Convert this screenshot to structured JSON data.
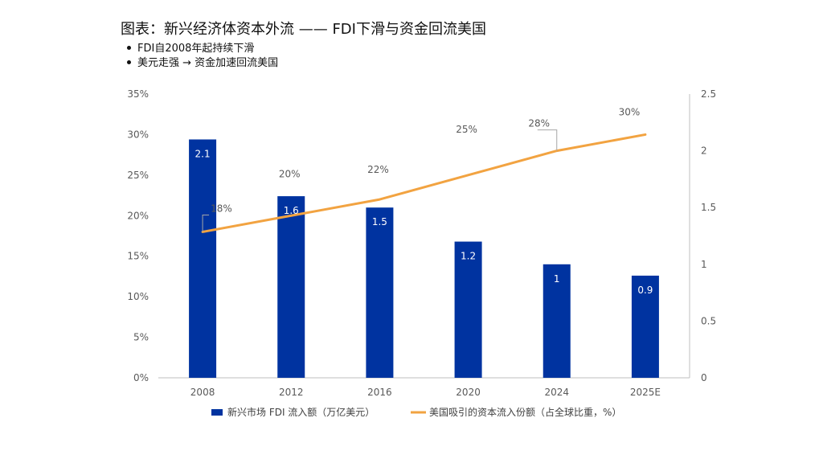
{
  "title": "图表：新兴经济体资本外流 —— FDI下滑与资金回流美国",
  "bullets": [
    "FDI自2008年起持续下滑",
    "美元走强 → 资金加速回流美国"
  ],
  "colors": {
    "bar": "#0033a0",
    "line": "#f2a341",
    "axis": "#bfbfbf",
    "leader": "#a6a6a6"
  },
  "chart_data": {
    "type": "bar+line",
    "categories": [
      "2008",
      "2012",
      "2016",
      "2020",
      "2024",
      "2025E"
    ],
    "series": [
      {
        "name": "新兴市场 FDI 流入额（万亿美元）",
        "type": "bar",
        "axis": "right",
        "values": [
          2.1,
          1.6,
          1.5,
          1.2,
          1,
          0.9
        ],
        "labels": [
          "2.1",
          "1.6",
          "1.5",
          "1.2",
          "1",
          "0.9"
        ]
      },
      {
        "name": "美国吸引的资本流入份额（占全球比重，%）",
        "type": "line",
        "axis": "left",
        "values": [
          18,
          20,
          22,
          25,
          28,
          30
        ],
        "labels": [
          "18%",
          "20%",
          "22%",
          "25%",
          "28%",
          "30%"
        ]
      }
    ],
    "y_left": {
      "min": 0,
      "max": 35,
      "ticks": [
        "0%",
        "5%",
        "10%",
        "15%",
        "20%",
        "25%",
        "30%",
        "35%"
      ]
    },
    "y_right": {
      "min": 0,
      "max": 2.5,
      "ticks": [
        "0",
        "0.5",
        "1",
        "1.5",
        "2",
        "2.5"
      ]
    },
    "grid": false,
    "legend": "bottom"
  }
}
